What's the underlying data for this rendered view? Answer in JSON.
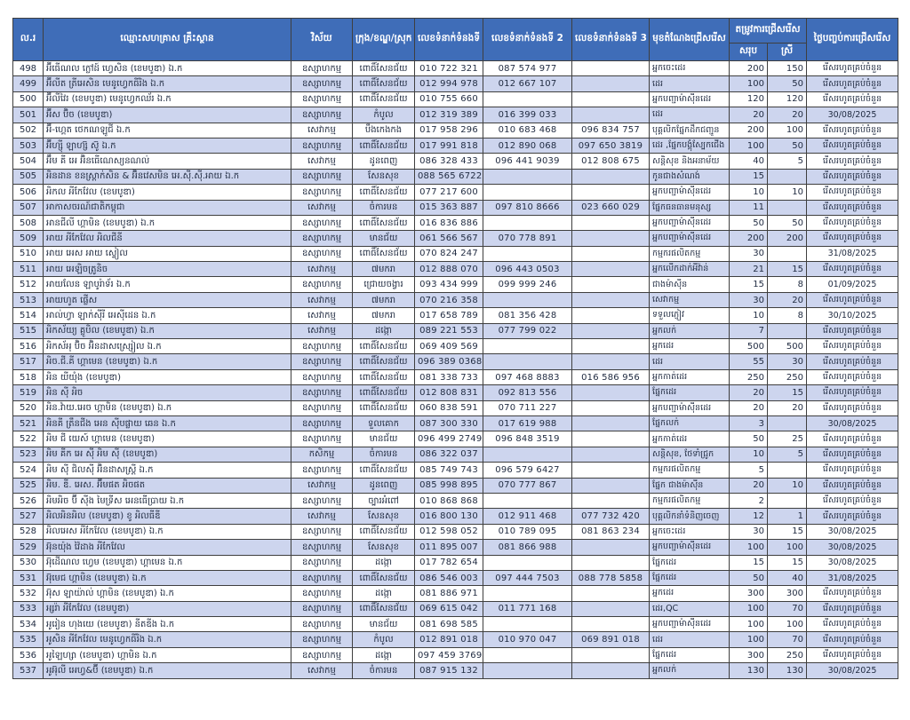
{
  "table": {
    "headers": {
      "no": "ល.រ",
      "name": "ឈ្មោះសហគ្រាស គ្រឹះស្ថាន",
      "sector": "វិស័យ",
      "district": "ក្រុង/ខណ្ឌ/ស្រុក",
      "phone1": "លេខទំនាក់ទំនងទី 1",
      "phone2": "លេខទំនាក់ទំនងទី 2",
      "phone3": "លេខទំនាក់ទំនងទី 3",
      "position": "មុខតំណែងជ្រើសរើស",
      "need_group": "តម្រូវការជ្រើសរើស",
      "need_total": "សរុប",
      "need_female": "ស្រី",
      "deadline": "ថ្ងៃបញ្ចប់ការជ្រើសរើស"
    },
    "rows": [
      [
        "498",
        "អ៊ីធើណល ក្លៅដ៍ ហ្វេសិន (ខេមបូឌា) ឯ.ក",
        "ឧស្សាហកម្ម",
        "ពោធិ៍សែនជ័យ",
        "010 722 321",
        "087 574 977",
        "",
        "អ្នកចេះដេរ",
        "200",
        "150",
        "រើសរហូតគ្រប់ចំនួន"
      ],
      [
        "499",
        "អ៊ីលីត ត្រីអេសិន មេនូហ្វេកធីរិង ឯ.ក",
        "ឧស្សាហកម្ម",
        "ពោធិ៍សែនជ័យ",
        "012 994 978",
        "012 667 107",
        "",
        "ដេរ",
        "100",
        "50",
        "រើសរហូតគ្រប់ចំនួន"
      ],
      [
        "500",
        "អ៊ីលីវៃរ (ខេមបូឌា) មេនូហ្វេកឈ័រ ឯ.ក",
        "ឧស្សាហកម្ម",
        "ពោធិ៍សែនជ័យ",
        "010 755 660",
        "",
        "",
        "អ្នកបញ្ជាម៉ាស៊ីនដេរ",
        "120",
        "120",
        "រើសរហូតគ្រប់ចំនួន"
      ],
      [
        "501",
        "អ៊ីស ប៊ិច (ខេមបូឌា)",
        "ឧស្សាហកម្ម",
        "កំបូល",
        "012 319 389",
        "016 399 033",
        "",
        "ដេរ",
        "20",
        "20",
        "30/08/2025"
      ],
      [
        "502",
        "អ៊ី-ហ្គេត ថេកណឡូជី ឯ.ក",
        "សេវាកម្ម",
        "បឹងកេងកង",
        "017 958 296",
        "010 683 468",
        "096 834 757",
        "បុគ្គលិកផ្នែកដឹកជញ្ជូន",
        "200",
        "100",
        "រើសរហូតគ្រប់ចំនួន"
      ],
      [
        "503",
        "អ៊ីហ្ស៊ី ឡាហ្ស៊ ស៊ូ ឯ.ក",
        "ឧស្សាហកម្ម",
        "ពោធិ៍សែនជ័យ",
        "017 991 818",
        "012 890 068",
        "097 650 3819",
        "ដេរ ,ផ្នែកបង្គុំស្បែកជើង",
        "100",
        "50",
        "រើសរហូតគ្រប់ចំនួន"
      ],
      [
        "504",
        "អ៊ឹម គី អេ អ៊ិនធើណេស្យនណល់",
        "សេវាកម្ម",
        "ដូនពេញ",
        "086 328 433",
        "096 441 9039",
        "012 808 675",
        "សន្តិសុខ និងអនាម័យ",
        "40",
        "5",
        "រើសរហូតគ្រប់ចំនួន"
      ],
      [
        "505",
        "អិនដាន ខនស្ត្រាក់សិន & អ៊ិនវេសមិន អេ.ស៊ី.ស៊ី.អាយ ឯ.ក",
        "ឧស្សាហកម្ម",
        "សែនសុខ",
        "088 565 6722",
        "",
        "",
        "កូនជាងសំណង់",
        "15",
        "",
        "រើសរហូតគ្រប់ចំនួន"
      ],
      [
        "506",
        "អិកល អីកែវែល (ខេមបូឌា)",
        "ឧស្សាហកម្ម",
        "ពោធិ៍សែនជ័យ",
        "077 217 600",
        "",
        "",
        "អ្នកបញ្ជាម៉ាស៊ីនដេរ",
        "10",
        "10",
        "រើសរហូតគ្រប់ចំនួន"
      ],
      [
        "507",
        "អាកាសចរណ៍ជាតិកម្ពុជា",
        "សេវាកម្ម",
        "ចំការមន",
        "015 363 887",
        "097 810 8666",
        "023 660 029",
        "ផ្នែកធនធានមនុស្ស",
        "11",
        "",
        "រើសរហូតគ្រប់ចំនួន"
      ],
      [
        "508",
        "អានជីលី ហ្គាមិន (ខេមបូឌា) ឯ.ក",
        "ឧស្សាហកម្ម",
        "ពោធិ៍សែនជ័យ",
        "016 836 886",
        "",
        "",
        "អ្នកបញ្ជាម៉ាស៊ីនដេរ",
        "50",
        "50",
        "រើសរហូតគ្រប់ចំនួន"
      ],
      [
        "509",
        "អាយ អីកែវែល អិលជីនី",
        "ឧស្សាហកម្ម",
        "មានជ័យ",
        "061 566 567",
        "070 778 891",
        "",
        "អ្នកបញ្ជាម៉ាស៊ីនដេរ",
        "200",
        "200",
        "រើសរហូតគ្រប់ចំនួន"
      ],
      [
        "510",
        "អាយ អេស អាយ ស្ទៀល",
        "ឧស្សាហកម្ម",
        "ពោធិ៍សែនជ័យ",
        "070 824 247",
        "",
        "",
        "កម្មករផលិតកម្ម",
        "30",
        "",
        "31/08/2025"
      ],
      [
        "511",
        "អាយ អេឡិចត្រូនិច",
        "សេវាកម្ម",
        "៧មករា",
        "012 888 070",
        "096 443 0503",
        "",
        "អ្នកលើកដាក់អីវ៉ាន់",
        "21",
        "15",
        "រើសរហូតគ្រប់ចំនួន"
      ],
      [
        "512",
        "អាយលែន ឡាបូរ៉ាទ័រ ឯ.ក",
        "ឧស្សាហកម្ម",
        "ជ្រោយចង្វារ",
        "093 434 999",
        "099 999 246",
        "",
        "ជាងម៉ាស៊ីន",
        "15",
        "8",
        "01/09/2025"
      ],
      [
        "513",
        "អាយហូត ផ្លើស",
        "សេវាកម្ម",
        "៧មករា",
        "070 216 358",
        "",
        "",
        "សេវាកម្ម",
        "30",
        "20",
        "រើសរហូតគ្រប់ចំនួន"
      ],
      [
        "514",
        "អាល់ហ្វា ឡាក់ស៊ីរី អេស៊ីដេន ឯ.ក",
        "សេវាកម្ម",
        "៧មករា",
        "017 658 789",
        "081 356 428",
        "",
        "ទទួលភ្ញៀវ",
        "10",
        "8",
        "30/10/2025"
      ],
      [
        "515",
        "អិកស័យ្យ គ្លូបិល (ខេមបូឌា) ឯ.ក",
        "សេវាកម្ម",
        "ដង្កោ",
        "089 221 553",
        "077 799 022",
        "",
        "អ្នកលក់",
        "7",
        "",
        "រើសរហូតគ្រប់ចំនួន"
      ],
      [
        "516",
        "អិកស័អុ ប៊ិច អ៊ិនដាសស្រ្សៀល ឯ.ក",
        "ឧស្សាហកម្ម",
        "ពោធិ៍សែនជ័យ",
        "069 409 569",
        "",
        "",
        "អ្នកដេរ",
        "500",
        "500",
        "រើសរហូតគ្រប់ចំនួន"
      ],
      [
        "517",
        "អិច.ជី.គី ហ្គាមេន (ខេមបូឌា) ឯ.ក",
        "ឧស្សាហកម្ម",
        "ពោធិ៍សែនជ័យ",
        "096 389 0368",
        "",
        "",
        "ដេរ",
        "55",
        "30",
        "រើសរហូតគ្រប់ចំនួន"
      ],
      [
        "518",
        "អិន យីយុំង (ខេមបូឌា)",
        "ឧស្សាហកម្ម",
        "ពោធិ៍សែនជ័យ",
        "081 338 733",
        "097 468 8883",
        "016 586 956",
        "អ្នកកាត់ដេរ",
        "250",
        "250",
        "រើសរហូតគ្រប់ចំនួន"
      ],
      [
        "519",
        "អិន ស៊ី អិច",
        "ឧស្សាហកម្ម",
        "ពោធិ៍សែនជ័យ",
        "012 808 831",
        "092 813 556",
        "",
        "ផ្នែកដេរ",
        "20",
        "15",
        "រើសរហូតគ្រប់ចំនួន"
      ],
      [
        "520",
        "អិន.វ៉ាយ.អេច ហ្គាមិន (ខេមបូឌា) ឯ.ក",
        "ឧស្សាហកម្ម",
        "ពោធិ៍សែនជ័យ",
        "060 838 591",
        "070 711 227",
        "",
        "អ្នកបញ្ជាម៉ាស៊ីនដេរ",
        "20",
        "20",
        "រើសរហូតគ្រប់ចំនួន"
      ],
      [
        "521",
        "អិនគី ត្រឹនជីង អេន ស៊ីបផ្លាយ ឆេន ឯ.ក",
        "ឧស្សាហកម្ម",
        "ទួលគោក",
        "087 300 330",
        "017 619 988",
        "",
        "ផ្នែកលក់",
        "3",
        "",
        "30/08/2025"
      ],
      [
        "522",
        "អិម ជី យេស៍ ហ្គាមេន (ខេមបូឌា)",
        "ឧស្សាហកម្ម",
        "មានជ័យ",
        "096 499 2749",
        "096 848 3519",
        "",
        "អ្នកកាត់ដេរ",
        "50",
        "25",
        "រើសរហូតគ្រប់ចំនួន"
      ],
      [
        "523",
        "អិម គីក អេ ស៊ី អិម ស៊ី (ខេមបូឌា)",
        "កសិកម្ម",
        "ចំការមន",
        "086 322 037",
        "",
        "",
        "សន្តិសុខ, ថែទាំជ្រូក",
        "10",
        "5",
        "រើសរហូតគ្រប់ចំនួន"
      ],
      [
        "524",
        "អិម ស៊ី ជិលស៊ី អ៊ិនដាសស្ត្រី ឯ.ក",
        "ឧស្សាហកម្ម",
        "ពោធិ៍សែនជ័យ",
        "085 749 743",
        "096 579 6427",
        "",
        "កម្មករផលិតកម្ម",
        "5",
        "",
        "រើសរហូតគ្រប់ចំនួន"
      ],
      [
        "525",
        "អិម. ឌី. អេស. អ៊ីមផត អិចផត",
        "សេវាកម្ម",
        "ដូនពេញ",
        "085 998 895",
        "070 777 867",
        "",
        "ផ្នែក ជាងម៉ាស៊ីន",
        "20",
        "10",
        "រើសរហូតគ្រប់ចំនួន"
      ],
      [
        "526",
        "អិមអិច ប៊ី ស៊ីង មៃទ្រីស អេនធើប្រាយ ឯ.ក",
        "ឧស្សាហកម្ម",
        "ច្បារអំពៅ",
        "010 868 868",
        "",
        "",
        "កម្មករផលិតកម្ម",
        "2",
        "",
        "រើសរហូតគ្រប់ចំនួន"
      ],
      [
        "527",
        "អិលអិនអិល (ខេមបូឌា) ខូ អិលធីឌី",
        "សេវាកម្ម",
        "សែនសុខ",
        "016 800 130",
        "012 911 468",
        "077 732 420",
        "បុគ្គលិកនាំទំនិញចេញ",
        "12",
        "1",
        "រើសរហូតគ្រប់ចំនួន"
      ],
      [
        "528",
        "អិលអេស អីកែវែល (ខេមបូឌា) ឯ.ក",
        "ឧស្សាហកម្ម",
        "ពោធិ៍សែនជ័យ",
        "012 598 052",
        "010 789 095",
        "081 863 234",
        "អ្នកចេះដេរ",
        "30",
        "15",
        "30/08/2025"
      ],
      [
        "529",
        "អ៊ុនយ៉ុង វ៉ៃដាង អីកែវែល",
        "ឧស្សាហកម្ម",
        "សែនសុខ",
        "011 895 007",
        "081 866 988",
        "",
        "អ្នកបញ្ជាម៉ាស៊ីនដេរ",
        "100",
        "100",
        "30/08/2025"
      ],
      [
        "530",
        "អ៊ុដើណល ហ្វេម (ខេមបូឌា) ហ្គាមេន ឯ.ក",
        "ឧស្សាហកម្ម",
        "ដង្កោ",
        "017 782 654",
        "",
        "",
        "ផ្នែកដេរ",
        "15",
        "15",
        "30/08/2025"
      ],
      [
        "531",
        "អ៊ុមេជ ហ្គាមិន (ខេមបូឌា) ឯ.ក",
        "ឧស្សាហកម្ម",
        "ពោធិ៍សែនជ័យ",
        "086 546 003",
        "097 444 7503",
        "088 778 5858",
        "ផ្នែកដេរ",
        "50",
        "40",
        "31/08/2025"
      ],
      [
        "532",
        "អ៊ុស ឡាយ៉ាល់ ហ្គាមិន (ខេមបូឌា) ឯ.ក",
        "ឧស្សាហកម្ម",
        "ដង្កោ",
        "081 886 971",
        "",
        "",
        "អ្នកដេរ",
        "300",
        "300",
        "រើសរហូតគ្រប់ចំនួន"
      ],
      [
        "533",
        "អ្សរ៉ា អីកែវែល (ខេមបូឌា)",
        "ឧស្សាហកម្ម",
        "ពោធិ៍សែនជ័យ",
        "069 615 042",
        "011 771 168",
        "",
        "ដេរ,QC",
        "100",
        "70",
        "រើសរហូតគ្រប់ចំនួន"
      ],
      [
        "534",
        "អូរៀន ហុងយេ (ខេមបូឌា) នីតឌីង ឯ.ក",
        "ឧស្សាហកម្ម",
        "មានជ័យ",
        "081 698 585",
        "",
        "",
        "អ្នកបញ្ជាម៉ាស៊ីនដេរ",
        "100",
        "100",
        "រើសរហូតគ្រប់ចំនួន"
      ],
      [
        "535",
        "អូសិន អីកែវែល មេនូហ្វេកធីរិង ឯ.ក",
        "ឧស្សាហកម្ម",
        "កំបូល",
        "012 891 018",
        "010 970 047",
        "069 891 018",
        "ដេរ",
        "100",
        "70",
        "រើសរហូតគ្រប់ចំនួន"
      ],
      [
        "536",
        "អូឡៃហ្សា (ខេមបូឌា) ហ្គាមិន ឯ.ក",
        "ឧស្សាហកម្ម",
        "ដង្កោ",
        "097 459 3769",
        "",
        "",
        "ផ្នែកដេរ",
        "300",
        "250",
        "រើសរហូតគ្រប់ចំនួន"
      ],
      [
        "537",
        "អូអ៊ុលី អេហ្វ&ប៊ី (ខេមបូឌា) ឯ.ក",
        "សេវាកម្ម",
        "ចំការមន",
        "087 915 132",
        "",
        "",
        "អ្នកលក់",
        "130",
        "130",
        "30/08/2025"
      ]
    ]
  },
  "colors": {
    "header_bg": "#3f6db8",
    "header_text": "#ffffff",
    "alt_row_bg": "#cdd5ee",
    "border": "#3f3f3f",
    "text": "#1f2a40"
  }
}
